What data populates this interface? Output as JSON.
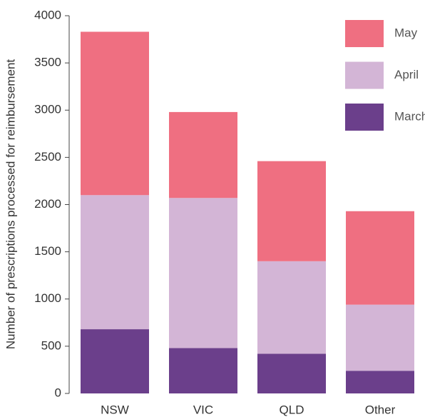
{
  "chart_data": {
    "type": "stacked_bar",
    "ylabel": "Number of prescriptions processed for reimbursement",
    "categories": [
      "NSW",
      "VIC",
      "QLD",
      "Other"
    ],
    "series": [
      {
        "name": "March",
        "color": "#6b3f8b",
        "values": [
          680,
          480,
          420,
          240
        ]
      },
      {
        "name": "April",
        "color": "#d3b5d6",
        "values": [
          1420,
          1590,
          980,
          700
        ]
      },
      {
        "name": "May",
        "color": "#ef6f81",
        "values": [
          1730,
          910,
          1060,
          990
        ]
      }
    ],
    "ylim": [
      0,
      4000
    ],
    "yticks": [
      0,
      500,
      1000,
      1500,
      2000,
      2500,
      3000,
      3500,
      4000
    ],
    "legend": "upper right",
    "grid": false
  }
}
